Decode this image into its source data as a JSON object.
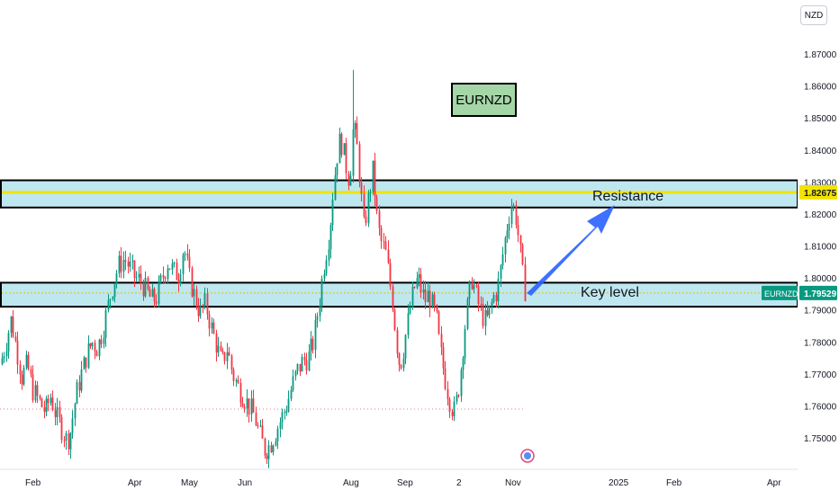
{
  "header": {
    "currency_label": "NZD",
    "title": "EURNZD"
  },
  "annotations": {
    "resistance_label": "Resistance",
    "key_level_label": "Key level"
  },
  "price_tags": {
    "resistance_price": "1.82675",
    "current_symbol": "EURNZD",
    "current_price": "1.79529"
  },
  "colors": {
    "up": "#089981",
    "down": "#f23645",
    "zone_fill": "#bfe7f0",
    "zone_border": "#000000",
    "yellow_line": "#f2e300",
    "arrow": "#2962ff",
    "tag_green": "#089981",
    "tag_yellow": "#f2e300"
  },
  "chart_data": {
    "type": "candlestick",
    "title": "EURNZD",
    "y_axis": {
      "ticks": [
        "1.87000",
        "1.86000",
        "1.85000",
        "1.84000",
        "1.83000",
        "1.82000",
        "1.81000",
        "1.80000",
        "1.79000",
        "1.78000",
        "1.77000",
        "1.76000",
        "1.75000"
      ],
      "range": [
        1.7425,
        1.8935
      ]
    },
    "x_axis": {
      "ticks": [
        "Feb",
        "Apr",
        "May",
        "Jun",
        "Aug",
        "Sep",
        "2",
        "Nov",
        "2025",
        "Feb",
        "Apr"
      ]
    },
    "zones": [
      {
        "name": "Resistance",
        "low": 1.822,
        "high": 1.8305,
        "line": 1.82675
      },
      {
        "name": "Key level",
        "low": 1.791,
        "high": 1.7985,
        "line": 1.79529
      }
    ],
    "current_price": 1.79529,
    "path": [
      [
        0,
        1.773
      ],
      [
        6,
        1.779
      ],
      [
        12,
        1.787
      ],
      [
        18,
        1.778
      ],
      [
        24,
        1.769
      ],
      [
        30,
        1.773
      ],
      [
        36,
        1.765
      ],
      [
        44,
        1.761
      ],
      [
        50,
        1.758
      ],
      [
        56,
        1.763
      ],
      [
        62,
        1.757
      ],
      [
        68,
        1.753
      ],
      [
        74,
        1.749
      ],
      [
        78,
        1.752
      ],
      [
        84,
        1.763
      ],
      [
        90,
        1.77
      ],
      [
        96,
        1.776
      ],
      [
        102,
        1.78
      ],
      [
        108,
        1.778
      ],
      [
        114,
        1.784
      ],
      [
        120,
        1.792
      ],
      [
        126,
        1.799
      ],
      [
        132,
        1.804
      ],
      [
        138,
        1.806
      ],
      [
        144,
        1.803
      ],
      [
        150,
        1.8
      ],
      [
        156,
        1.799
      ],
      [
        162,
        1.796
      ],
      [
        168,
        1.793
      ],
      [
        174,
        1.794
      ],
      [
        180,
        1.8
      ],
      [
        186,
        1.805
      ],
      [
        192,
        1.802
      ],
      [
        198,
        1.801
      ],
      [
        204,
        1.81
      ],
      [
        210,
        1.8
      ],
      [
        216,
        1.794
      ],
      [
        222,
        1.789
      ],
      [
        228,
        1.792
      ],
      [
        234,
        1.785
      ],
      [
        240,
        1.779
      ],
      [
        246,
        1.773
      ],
      [
        252,
        1.778
      ],
      [
        258,
        1.77
      ],
      [
        264,
        1.766
      ],
      [
        270,
        1.763
      ],
      [
        276,
        1.76
      ],
      [
        282,
        1.757
      ],
      [
        288,
        1.751
      ],
      [
        294,
        1.746
      ],
      [
        300,
        1.748
      ],
      [
        306,
        1.752
      ],
      [
        312,
        1.756
      ],
      [
        318,
        1.76
      ],
      [
        324,
        1.766
      ],
      [
        330,
        1.771
      ],
      [
        336,
        1.774
      ],
      [
        342,
        1.775
      ],
      [
        348,
        1.78
      ],
      [
        354,
        1.792
      ],
      [
        360,
        1.805
      ],
      [
        366,
        1.815
      ],
      [
        370,
        1.828
      ],
      [
        374,
        1.838
      ],
      [
        378,
        1.844
      ],
      [
        384,
        1.835
      ],
      [
        388,
        1.83
      ],
      [
        392,
        1.848
      ],
      [
        396,
        1.842
      ],
      [
        400,
        1.829
      ],
      [
        404,
        1.815
      ],
      [
        408,
        1.823
      ],
      [
        414,
        1.834
      ],
      [
        418,
        1.82
      ],
      [
        422,
        1.812
      ],
      [
        428,
        1.808
      ],
      [
        432,
        1.8
      ],
      [
        436,
        1.792
      ],
      [
        440,
        1.78
      ],
      [
        444,
        1.772
      ],
      [
        448,
        1.778
      ],
      [
        452,
        1.785
      ],
      [
        456,
        1.792
      ],
      [
        460,
        1.797
      ],
      [
        464,
        1.8
      ],
      [
        468,
        1.796
      ],
      [
        472,
        1.793
      ],
      [
        476,
        1.795
      ],
      [
        480,
        1.791
      ],
      [
        484,
        1.788
      ],
      [
        488,
        1.778
      ],
      [
        492,
        1.772
      ],
      [
        496,
        1.766
      ],
      [
        500,
        1.761
      ],
      [
        504,
        1.758
      ],
      [
        508,
        1.763
      ],
      [
        512,
        1.773
      ],
      [
        516,
        1.784
      ],
      [
        520,
        1.793
      ],
      [
        524,
        1.8
      ],
      [
        528,
        1.795
      ],
      [
        532,
        1.791
      ],
      [
        536,
        1.788
      ],
      [
        540,
        1.786
      ],
      [
        544,
        1.79
      ],
      [
        548,
        1.794
      ],
      [
        552,
        1.796
      ],
      [
        556,
        1.803
      ],
      [
        560,
        1.811
      ],
      [
        564,
        1.818
      ],
      [
        568,
        1.823
      ],
      [
        572,
        1.821
      ],
      [
        576,
        1.812
      ],
      [
        580,
        1.801
      ],
      [
        584,
        1.794
      ]
    ],
    "markers": [
      {
        "label": "dotted-low",
        "y": 1.759
      }
    ]
  }
}
